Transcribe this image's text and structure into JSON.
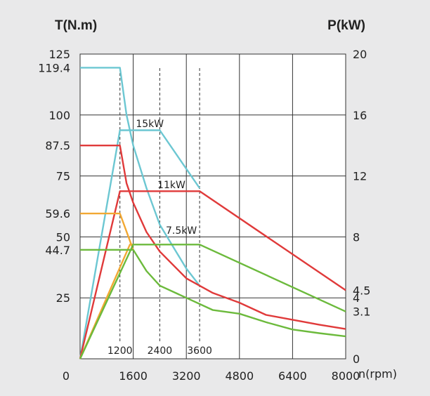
{
  "chart_data": {
    "type": "line",
    "y_left_label": "T(N.m)",
    "y_right_label": "P(kW)",
    "x_label": "n(rpm)",
    "xlim": [
      0,
      8000
    ],
    "y_left_lim": [
      0,
      125
    ],
    "y_right_lim": [
      0,
      20
    ],
    "x_ticks": [
      {
        "value": 1600,
        "label": "1600"
      },
      {
        "value": 3200,
        "label": "3200"
      },
      {
        "value": 4800,
        "label": "4800"
      },
      {
        "value": 6400,
        "label": "6400"
      },
      {
        "value": 8000,
        "label": "8000"
      }
    ],
    "x_origin_label": "0",
    "y_left_ticks": [
      {
        "value": 125,
        "label": "125"
      },
      {
        "value": 119.4,
        "label": "119.4"
      },
      {
        "value": 100,
        "label": "100"
      },
      {
        "value": 87.5,
        "label": "87.5"
      },
      {
        "value": 75,
        "label": "75"
      },
      {
        "value": 59.6,
        "label": "59.6"
      },
      {
        "value": 50,
        "label": "50"
      },
      {
        "value": 44.7,
        "label": "44.7"
      },
      {
        "value": 25,
        "label": "25"
      }
    ],
    "y_right_ticks": [
      {
        "value": 20,
        "label": "20"
      },
      {
        "value": 16,
        "label": "16"
      },
      {
        "value": 12,
        "label": "12"
      },
      {
        "value": 8,
        "label": "8"
      },
      {
        "value": 4.5,
        "label": "4.5"
      },
      {
        "value": 4,
        "label": "4"
      },
      {
        "value": 3.1,
        "label": "3.1"
      },
      {
        "value": 0,
        "label": "0"
      }
    ],
    "grid": {
      "x": [
        1600,
        3200,
        4800,
        6400,
        8000
      ],
      "y_left": [
        25,
        50,
        75,
        100,
        125
      ]
    },
    "ref_lines": [
      {
        "x": 1200,
        "label": "1200"
      },
      {
        "x": 2400,
        "label": "2400"
      },
      {
        "x": 3600,
        "label": "3600"
      }
    ],
    "annotations": [
      {
        "text": "15kW",
        "x": 2100,
        "y_right": 15.2
      },
      {
        "text": "11kW",
        "x": 2750,
        "y_right": 11.2
      },
      {
        "text": "7.5kW",
        "x": 3050,
        "y_right": 8.2
      }
    ],
    "series": [
      {
        "color": "#6cc7d2",
        "axis": "left",
        "points": [
          [
            0,
            119.4
          ],
          [
            1200,
            119.4
          ],
          [
            1400,
            100
          ],
          [
            1600,
            87.5
          ],
          [
            2000,
            70
          ],
          [
            2400,
            55
          ],
          [
            3200,
            37
          ],
          [
            3600,
            30
          ]
        ]
      },
      {
        "color": "#6cc7d2",
        "axis": "right",
        "points": [
          [
            0,
            0
          ],
          [
            1200,
            15
          ],
          [
            2400,
            15
          ],
          [
            3600,
            11.2
          ]
        ]
      },
      {
        "color": "#e03a3a",
        "axis": "left",
        "points": [
          [
            0,
            87.5
          ],
          [
            1200,
            87.5
          ],
          [
            1400,
            72
          ],
          [
            1600,
            64
          ],
          [
            2000,
            52
          ],
          [
            2400,
            44
          ],
          [
            3200,
            33
          ],
          [
            4000,
            27
          ],
          [
            4800,
            23
          ],
          [
            5600,
            18
          ],
          [
            6400,
            16
          ],
          [
            7200,
            14
          ],
          [
            8000,
            12.2
          ]
        ]
      },
      {
        "color": "#e03a3a",
        "axis": "right",
        "points": [
          [
            0,
            0
          ],
          [
            1200,
            11
          ],
          [
            3600,
            11
          ],
          [
            8000,
            4.5
          ]
        ]
      },
      {
        "color": "#f2a833",
        "axis": "left",
        "points": [
          [
            0,
            59.6
          ],
          [
            1200,
            59.6
          ],
          [
            1600,
            44.7
          ]
        ]
      },
      {
        "color": "#f2a833",
        "axis": "right",
        "points": [
          [
            0,
            0
          ],
          [
            1500,
            7.5
          ],
          [
            1600,
            7.5
          ]
        ]
      },
      {
        "color": "#6cba3c",
        "axis": "left",
        "points": [
          [
            0,
            44.7
          ],
          [
            1600,
            44.7
          ],
          [
            2000,
            36
          ],
          [
            2400,
            30
          ],
          [
            3200,
            25
          ],
          [
            4000,
            20
          ],
          [
            4800,
            18.5
          ],
          [
            5600,
            15
          ],
          [
            6400,
            12
          ],
          [
            7200,
            10.5
          ],
          [
            8000,
            9.2
          ]
        ]
      },
      {
        "color": "#6cba3c",
        "axis": "right",
        "points": [
          [
            0,
            0
          ],
          [
            1600,
            7.5
          ],
          [
            3600,
            7.5
          ],
          [
            8000,
            3.1
          ]
        ]
      }
    ]
  }
}
